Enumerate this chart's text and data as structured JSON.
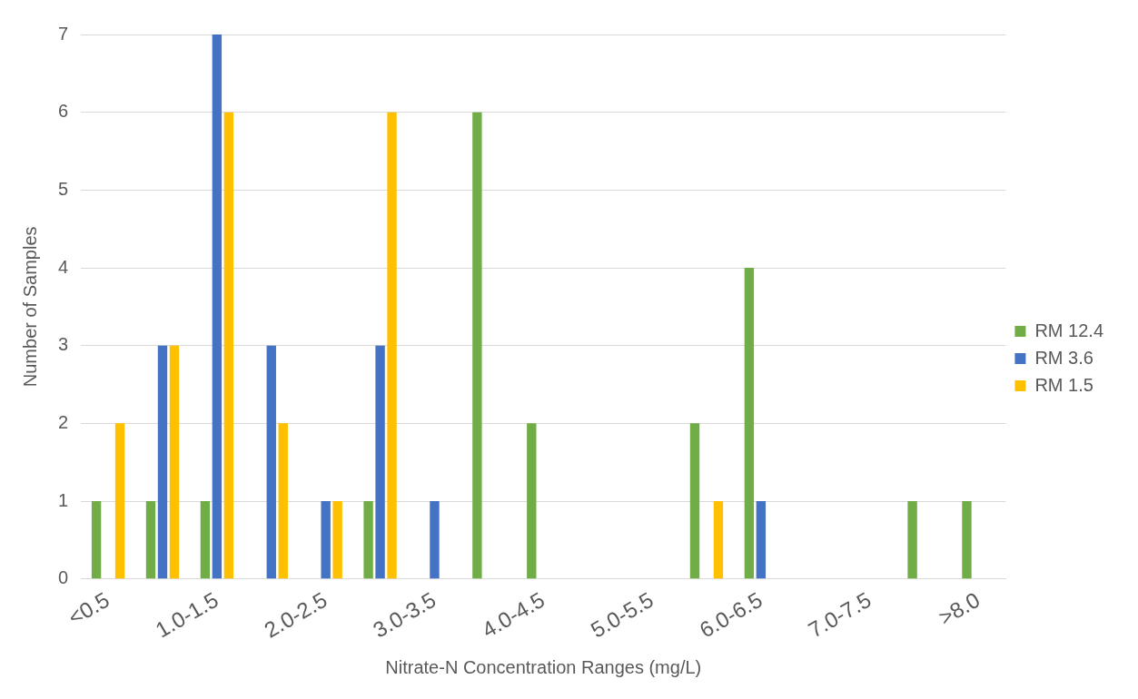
{
  "chart_data": {
    "type": "bar",
    "xlabel": "Nitrate-N Concentration Ranges (mg/L)",
    "ylabel": "Number of Samples",
    "categories": [
      "<0.5",
      null,
      "1.0-1.5",
      null,
      "2.0-2.5",
      null,
      "3.0-3.5",
      null,
      "4.0-4.5",
      null,
      "5.0-5.5",
      null,
      "6.0-6.5",
      null,
      "7.0-7.5",
      null,
      ">8.0"
    ],
    "series": [
      {
        "name": "RM 12.4",
        "color": "#70ad47",
        "values": [
          1,
          1,
          1,
          0,
          0,
          1,
          0,
          6,
          2,
          0,
          0,
          2,
          4,
          0,
          0,
          1,
          1
        ]
      },
      {
        "name": "RM 3.6",
        "color": "#4472c4",
        "values": [
          0,
          3,
          7,
          3,
          1,
          3,
          1,
          0,
          0,
          0,
          0,
          0,
          1,
          0,
          0,
          0,
          0
        ]
      },
      {
        "name": "RM 1.5",
        "color": "#ffc000",
        "values": [
          2,
          3,
          6,
          2,
          1,
          6,
          0,
          0,
          0,
          0,
          0,
          1,
          0,
          0,
          0,
          0,
          0
        ]
      }
    ],
    "ylim": [
      0,
      7
    ],
    "yticks": [
      0,
      1,
      2,
      3,
      4,
      5,
      6,
      7
    ],
    "grid": "y",
    "legend": "right"
  }
}
